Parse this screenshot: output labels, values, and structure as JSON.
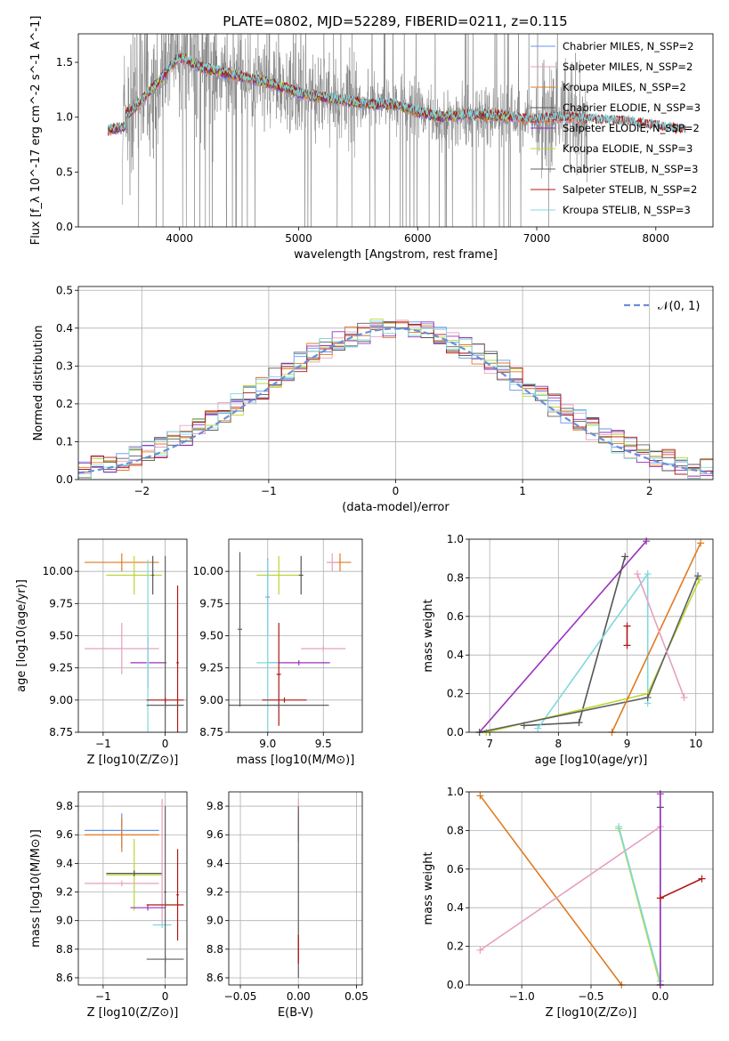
{
  "page_title": "PLATE=0802, MJD=52289, FIBERID=0211, z=0.115",
  "colors": {
    "chabrier_miles": "#6495ED",
    "salpeter_miles": "#E6A0C0",
    "kroupa_miles": "#E07B20",
    "chabrier_elodie": "#555555",
    "salpeter_elodie": "#9B30C0",
    "kroupa_elodie": "#B8D832",
    "chabrier_stelib": "#606060",
    "salpeter_stelib": "#B01818",
    "kroupa_stelib": "#80D8E0",
    "data": "#808080",
    "normal_curve": "#6A8FD8"
  },
  "chart_data": [
    {
      "id": "spectrum",
      "type": "line",
      "title": "PLATE=0802, MJD=52289, FIBERID=0211, z=0.115",
      "xlabel": "wavelength [Angstrom, rest frame]",
      "ylabel": "Flux [f_λ 10^-17 erg cm^-2 s^-1 A^-1]",
      "xlim": [
        3150,
        8480
      ],
      "ylim": [
        0,
        1.76
      ],
      "xticks": [
        "4000",
        "5000",
        "6000",
        "7000",
        "8000"
      ],
      "yticks": [
        "0.0",
        "0.5",
        "1.0",
        "1.5"
      ],
      "grid": false,
      "legend_position": "top-right",
      "legend": [
        "Chabrier MILES, N_SSP=2",
        "Salpeter MILES, N_SSP=2",
        "Kroupa MILES, N_SSP=2",
        "Chabrier ELODIE, N_SSP=3",
        "Salpeter ELODIE, N_SSP=2",
        "Kroupa ELODIE, N_SSP=3",
        "Chabrier STELIB, N_SSP=3",
        "Salpeter STELIB, N_SSP=2",
        "Kroupa STELIB, N_SSP=3"
      ],
      "model_x": [
        3400,
        3600,
        3800,
        4000,
        4200,
        4400,
        4600,
        4800,
        5000,
        5200,
        5400,
        5600,
        5800,
        6000,
        6200,
        6400,
        6600,
        6800,
        7000,
        7200,
        7400,
        7600,
        7800,
        8000,
        8200
      ],
      "model_y": [
        1.0,
        1.05,
        1.3,
        1.55,
        1.45,
        1.4,
        1.35,
        1.3,
        1.22,
        1.18,
        1.15,
        1.12,
        1.12,
        1.05,
        1.0,
        1.02,
        1.02,
        1.0,
        0.98,
        1.0,
        0.98,
        0.97,
        0.95,
        0.92,
        0.88
      ],
      "data_x_range": [
        3520,
        7430
      ]
    },
    {
      "id": "residuals",
      "type": "histogram",
      "xlabel": "(data-model)/error",
      "ylabel": "Normed distribution",
      "xlim": [
        -2.5,
        2.5
      ],
      "ylim": [
        0,
        0.51
      ],
      "xticks": [
        "−2",
        "−1",
        "0",
        "1",
        "2"
      ],
      "yticks": [
        "0.0",
        "0.1",
        "0.2",
        "0.3",
        "0.4",
        "0.5"
      ],
      "grid": true,
      "legend": [
        "𝒩(0, 1)"
      ],
      "legend_position": "top-right",
      "bin_edges": [
        -2.5,
        -2.4,
        -2.3,
        -2.2,
        -2.1,
        -2.0,
        -1.9,
        -1.8,
        -1.7,
        -1.6,
        -1.5,
        -1.4,
        -1.3,
        -1.2,
        -1.1,
        -1.0,
        -0.9,
        -0.8,
        -0.7,
        -0.6,
        -0.5,
        -0.4,
        -0.3,
        -0.2,
        -0.1,
        0.0,
        0.1,
        0.2,
        0.3,
        0.4,
        0.5,
        0.6,
        0.7,
        0.8,
        0.9,
        1.0,
        1.1,
        1.2,
        1.3,
        1.4,
        1.5,
        1.6,
        1.7,
        1.8,
        1.9,
        2.0,
        2.1,
        2.2,
        2.3,
        2.4,
        2.5
      ]
    },
    {
      "id": "age_vs_Z",
      "type": "errorbar",
      "xlabel": "Z [log10(Z/Z⊙)]",
      "ylabel": "age [log10(age/yr)]",
      "xlim": [
        -1.4,
        0.35
      ],
      "ylim": [
        8.75,
        10.25
      ],
      "xticks": [
        "−1",
        "0"
      ],
      "yticks": [
        "8.75",
        "9.00",
        "9.25",
        "9.50",
        "9.75",
        "10.00"
      ],
      "grid": true,
      "points": [
        {
          "c": "kroupa_miles",
          "x": -0.7,
          "xerr": 0.6,
          "y": 10.07,
          "yerr": 0.07
        },
        {
          "c": "kroupa_elodie",
          "x": -0.5,
          "xerr": 0.45,
          "y": 9.97,
          "yerr": 0.15
        },
        {
          "c": "chabrier_elodie",
          "x": -0.2,
          "xerr": 0.02,
          "y": 9.97,
          "yerr": 0.15
        },
        {
          "c": "salpeter_miles",
          "x": -0.7,
          "xerr": 0.6,
          "y": 9.4,
          "yerr": 0.2
        },
        {
          "c": "salpeter_elodie",
          "x": -0.28,
          "xerr": 0.28,
          "y": 9.29,
          "yerr": 0.2
        },
        {
          "c": "kroupa_stelib",
          "x": -0.28,
          "xerr": 0.02,
          "y": 9.29,
          "yerr": 0.8
        },
        {
          "c": "chabrier_stelib",
          "x": 0.0,
          "xerr": 0.02,
          "y": 9.29,
          "yerr": 0.83
        },
        {
          "c": "salpeter_stelib",
          "x": 0.2,
          "xerr": 0.02,
          "y": 9.29,
          "yerr": 0.6
        },
        {
          "c": "salpeter_stelib",
          "x": 0.0,
          "xerr": 0.3,
          "y": 9.0,
          "yerr": 0.02
        },
        {
          "c": "chabrier_stelib",
          "x": 0.0,
          "xerr": 0.3,
          "y": 8.96,
          "yerr": 0.02
        }
      ]
    },
    {
      "id": "age_vs_mass",
      "type": "errorbar",
      "xlabel": "mass [log10(M/M⊙)]",
      "ylabel": "",
      "xlim": [
        8.65,
        9.85
      ],
      "ylim": [
        8.75,
        10.25
      ],
      "xticks": [
        "9.0",
        "9.5"
      ],
      "yticks": [
        "8.75",
        "9.00",
        "9.25",
        "9.50",
        "9.75",
        "10.00"
      ],
      "grid": true,
      "points": [
        {
          "c": "kroupa_miles",
          "x": 9.65,
          "xerr": 0.1,
          "y": 10.07,
          "yerr": 0.07
        },
        {
          "c": "salpeter_miles",
          "x": 9.58,
          "xerr": 0.05,
          "y": 10.07,
          "yerr": 0.07
        },
        {
          "c": "kroupa_elodie",
          "x": 9.1,
          "xerr": 0.2,
          "y": 9.97,
          "yerr": 0.15
        },
        {
          "c": "chabrier_elodie",
          "x": 9.3,
          "xerr": 0.02,
          "y": 9.97,
          "yerr": 0.15
        },
        {
          "c": "chabrier_miles",
          "x": 9.0,
          "xerr": 0.02,
          "y": 9.8,
          "yerr": 0.3
        },
        {
          "c": "salpeter_miles",
          "x": 9.5,
          "xerr": 0.2,
          "y": 9.4,
          "yerr": 0.02
        },
        {
          "c": "salpeter_elodie",
          "x": 9.28,
          "xerr": 0.28,
          "y": 9.29,
          "yerr": 0.02
        },
        {
          "c": "kroupa_stelib",
          "x": 9.0,
          "xerr": 0.1,
          "y": 9.29,
          "yerr": 0.8
        },
        {
          "c": "salpeter_stelib",
          "x": 9.1,
          "xerr": 0.02,
          "y": 9.2,
          "yerr": 0.4
        },
        {
          "c": "salpeter_stelib",
          "x": 9.15,
          "xerr": 0.2,
          "y": 9.0,
          "yerr": 0.02
        },
        {
          "c": "chabrier_stelib",
          "x": 8.75,
          "xerr": 0.02,
          "y": 9.55,
          "yerr": 0.6
        },
        {
          "c": "chabrier_stelib",
          "x": 9.1,
          "xerr": 0.45,
          "y": 8.96,
          "yerr": 0.02
        }
      ]
    },
    {
      "id": "mw_vs_age",
      "type": "line",
      "xlabel": "age [log10(age/yr)]",
      "ylabel": "mass weight",
      "xlim": [
        6.7,
        10.25
      ],
      "ylim": [
        0,
        1.0
      ],
      "xticks": [
        "7",
        "8",
        "9",
        "10"
      ],
      "yticks": [
        "0.0",
        "0.2",
        "0.4",
        "0.6",
        "0.8",
        "1.0"
      ],
      "grid": true,
      "series": [
        {
          "c": "salpeter_elodie",
          "x": [
            6.85,
            9.28
          ],
          "y": [
            0.0,
            0.99
          ]
        },
        {
          "c": "chabrier_elodie",
          "x": [
            7.5,
            8.3,
            8.97
          ],
          "y": [
            0.035,
            0.05,
            0.91
          ]
        },
        {
          "c": "kroupa_stelib",
          "x": [
            7.7,
            9.3,
            9.3
          ],
          "y": [
            0.02,
            0.82,
            0.15
          ]
        },
        {
          "c": "kroupa_elodie",
          "x": [
            6.95,
            9.3,
            10.05
          ],
          "y": [
            0.0,
            0.2,
            0.79
          ]
        },
        {
          "c": "chabrier_stelib",
          "x": [
            6.85,
            9.3,
            10.03
          ],
          "y": [
            0.0,
            0.18,
            0.81
          ]
        },
        {
          "c": "kroupa_miles",
          "x": [
            8.78,
            10.07
          ],
          "y": [
            0.0,
            0.98
          ]
        },
        {
          "c": "salpeter_miles",
          "x": [
            9.15,
            9.83
          ],
          "y": [
            0.82,
            0.18
          ]
        },
        {
          "c": "salpeter_stelib",
          "x": [
            9.0,
            9.0
          ],
          "y": [
            0.45,
            0.55
          ]
        }
      ]
    },
    {
      "id": "mass_vs_Z",
      "type": "errorbar",
      "xlabel": "Z [log10(Z/Z⊙)]",
      "ylabel": "mass [log10(M/M⊙)]",
      "xlim": [
        -1.4,
        0.35
      ],
      "ylim": [
        8.55,
        9.9
      ],
      "xticks": [
        "−1",
        "0"
      ],
      "yticks": [
        "8.6",
        "8.8",
        "9.0",
        "9.2",
        "9.4",
        "9.6",
        "9.8"
      ],
      "grid": true,
      "points": [
        {
          "c": "chabrier_miles",
          "x": -0.7,
          "xerr": 0.6,
          "y": 9.63,
          "yerr": 0.12
        },
        {
          "c": "kroupa_miles",
          "x": -0.7,
          "xerr": 0.6,
          "y": 9.6,
          "yerr": 0.12
        },
        {
          "c": "kroupa_elodie",
          "x": -0.5,
          "xerr": 0.45,
          "y": 9.32,
          "yerr": 0.25
        },
        {
          "c": "chabrier_elodie",
          "x": -0.5,
          "xerr": 0.45,
          "y": 9.33,
          "yerr": 0.02
        },
        {
          "c": "salpeter_miles",
          "x": -0.7,
          "xerr": 0.6,
          "y": 9.26,
          "yerr": 0.02
        },
        {
          "c": "salpeter_miles",
          "x": -0.05,
          "xerr": 0.02,
          "y": 9.4,
          "yerr": 0.45
        },
        {
          "c": "salpeter_elodie",
          "x": -0.28,
          "xerr": 0.28,
          "y": 9.09,
          "yerr": 0.02
        },
        {
          "c": "salpeter_stelib",
          "x": 0.0,
          "xerr": 0.3,
          "y": 9.11,
          "yerr": 0.02
        },
        {
          "c": "salpeter_stelib",
          "x": 0.2,
          "xerr": 0.02,
          "y": 9.18,
          "yerr": 0.32
        },
        {
          "c": "kroupa_stelib",
          "x": -0.05,
          "xerr": 0.15,
          "y": 8.97,
          "yerr": 0.02
        },
        {
          "c": "chabrier_stelib",
          "x": 0.0,
          "xerr": 0.02,
          "y": 9.2,
          "yerr": 0.6
        },
        {
          "c": "chabrier_stelib",
          "x": 0.0,
          "xerr": 0.3,
          "y": 8.73,
          "yerr": 0.02
        }
      ]
    },
    {
      "id": "mass_vs_EBV",
      "type": "errorbar",
      "xlabel": "E(B-V)",
      "ylabel": "",
      "xlim": [
        -0.06,
        0.055
      ],
      "ylim": [
        8.55,
        9.9
      ],
      "xticks": [
        "−0.05",
        "0.00",
        "0.05"
      ],
      "yticks": [
        "8.6",
        "8.8",
        "9.0",
        "9.2",
        "9.4",
        "9.6",
        "9.8"
      ],
      "grid": true,
      "points": [
        {
          "c": "salpeter_elodie",
          "x": 0.0,
          "xerr": 0.0005,
          "y": 9.65,
          "yerr": 0.1
        },
        {
          "c": "salpeter_miles",
          "x": 0.0,
          "xerr": 0.0005,
          "y": 9.7,
          "yerr": 0.15
        },
        {
          "c": "chabrier_stelib",
          "x": 0.0,
          "xerr": 0.0005,
          "y": 9.2,
          "yerr": 0.6
        },
        {
          "c": "salpeter_stelib",
          "x": 0.0,
          "xerr": 0.0005,
          "y": 8.8,
          "yerr": 0.1
        }
      ]
    },
    {
      "id": "mw_vs_Z",
      "type": "line",
      "xlabel": "Z [log10(Z/Z⊙)]",
      "ylabel": "mass weight",
      "xlim": [
        -1.38,
        0.38
      ],
      "ylim": [
        0,
        1.0
      ],
      "xticks": [
        "−1.0",
        "−0.5",
        "0.0"
      ],
      "yticks": [
        "0.0",
        "0.2",
        "0.4",
        "0.6",
        "0.8",
        "1.0"
      ],
      "grid": true,
      "series": [
        {
          "c": "kroupa_miles",
          "x": [
            -1.3,
            -0.28
          ],
          "y": [
            0.98,
            0.0
          ]
        },
        {
          "c": "salpeter_miles",
          "x": [
            -1.3,
            0.0
          ],
          "y": [
            0.18,
            0.82
          ]
        },
        {
          "c": "kroupa_elodie",
          "x": [
            -0.3,
            0.0
          ],
          "y": [
            0.81,
            0.0
          ]
        },
        {
          "c": "kroupa_stelib",
          "x": [
            -0.3,
            0.0
          ],
          "y": [
            0.82,
            0.02
          ]
        },
        {
          "c": "chabrier_elodie",
          "x": [
            0.0,
            0.0
          ],
          "y": [
            0.0,
            0.92
          ]
        },
        {
          "c": "salpeter_elodie",
          "x": [
            0.0,
            0.0
          ],
          "y": [
            0.0,
            0.99
          ]
        },
        {
          "c": "salpeter_stelib",
          "x": [
            0.0,
            0.3
          ],
          "y": [
            0.45,
            0.55
          ]
        }
      ]
    }
  ]
}
